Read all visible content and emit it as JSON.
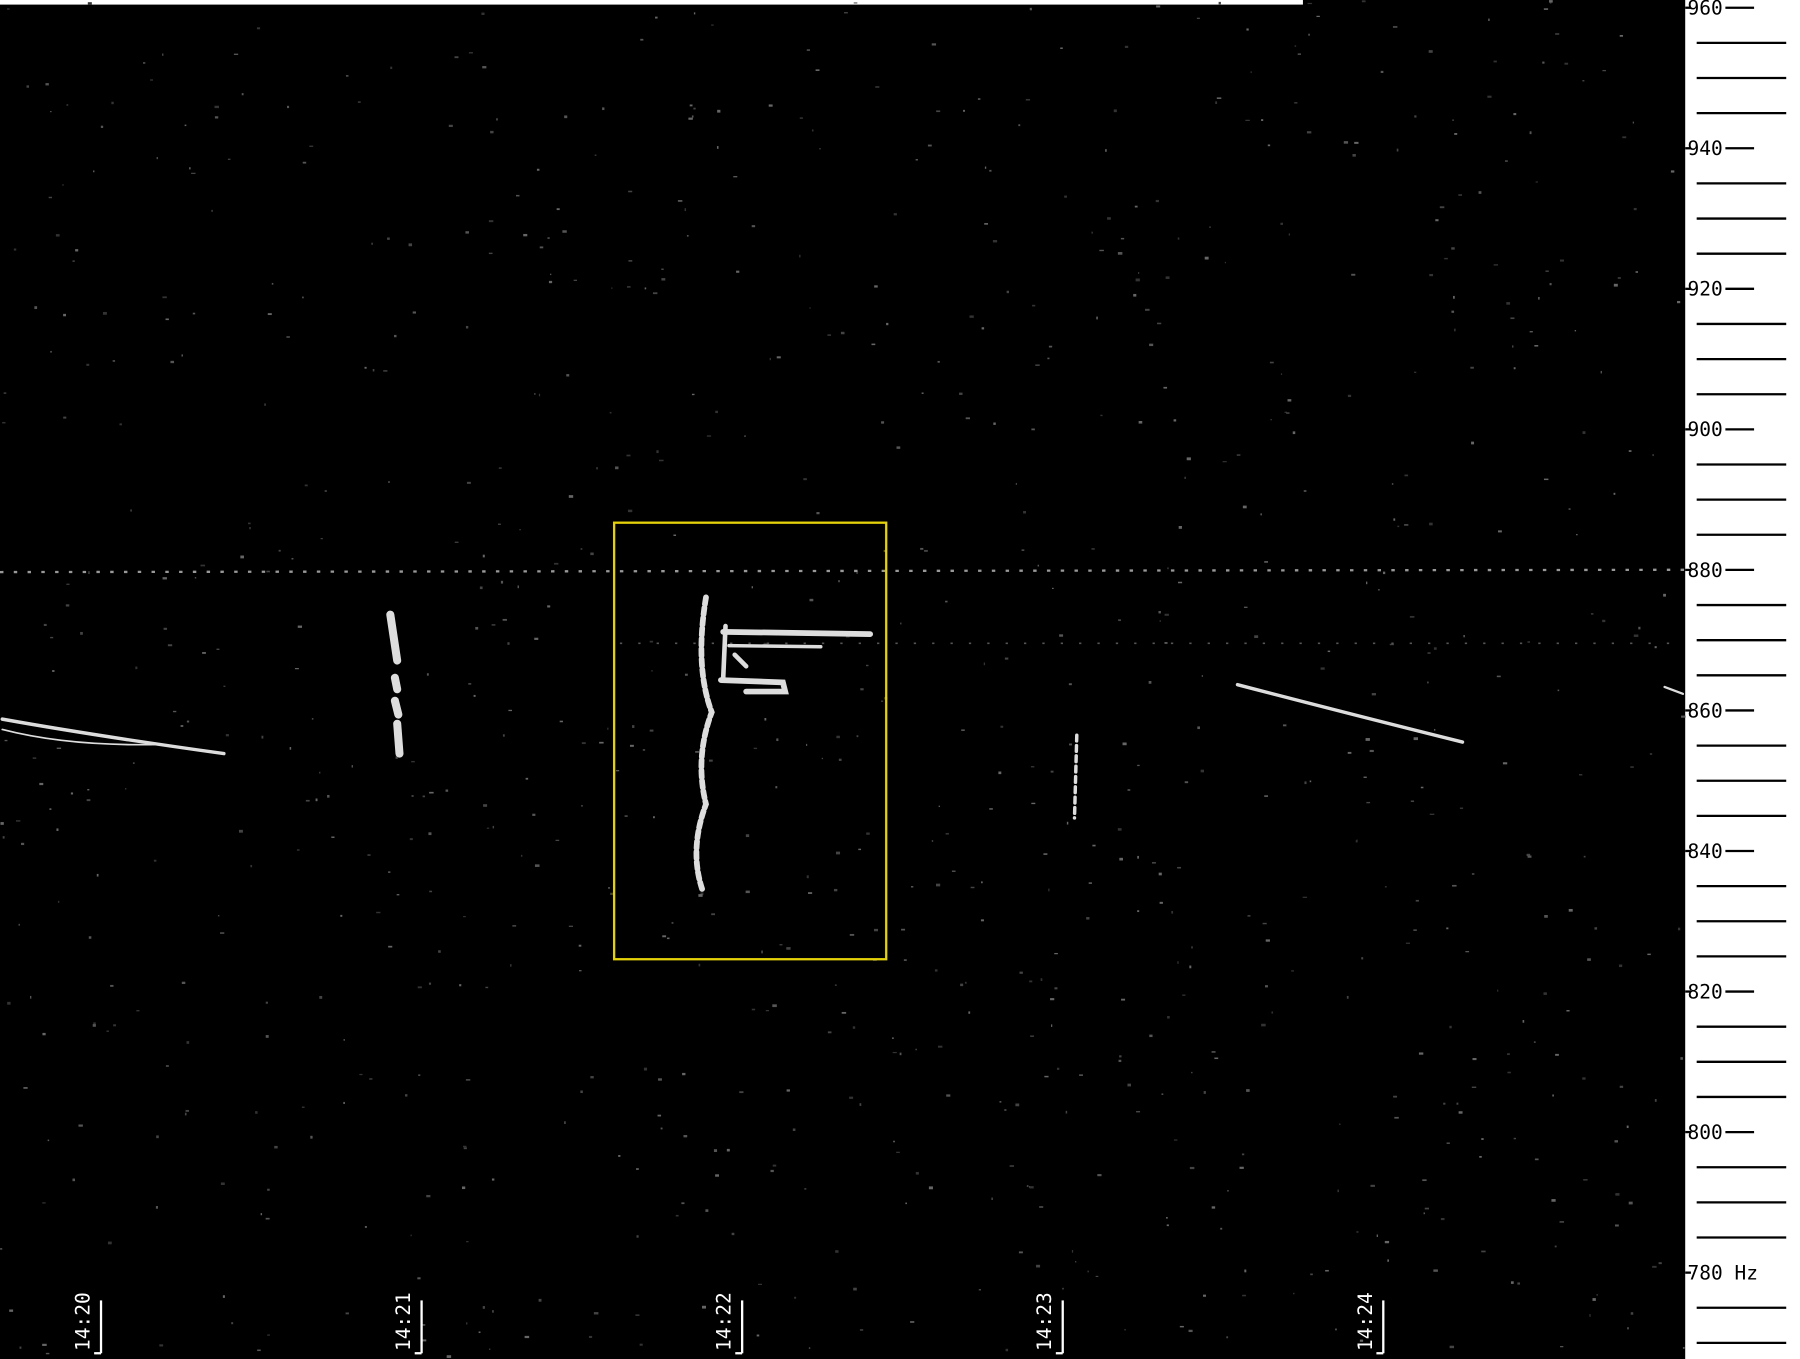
{
  "chart_data": {
    "type": "spectrogram",
    "ylim": [
      768.2,
      961.1
    ],
    "yticks": [
      960,
      940,
      920,
      900,
      880,
      860,
      840,
      820,
      800,
      {
        "value": 780,
        "label": "780 Hz"
      }
    ],
    "yminorticks": [
      955,
      950,
      945,
      935,
      930,
      925,
      915,
      910,
      905,
      895,
      890,
      885,
      875,
      870,
      865,
      855,
      850,
      845,
      835,
      830,
      825,
      815,
      810,
      805,
      795,
      790,
      785,
      775,
      770
    ],
    "xticks": [
      "14:20",
      "14:21",
      "14:22",
      "14:23",
      "14:24"
    ]
  }
}
